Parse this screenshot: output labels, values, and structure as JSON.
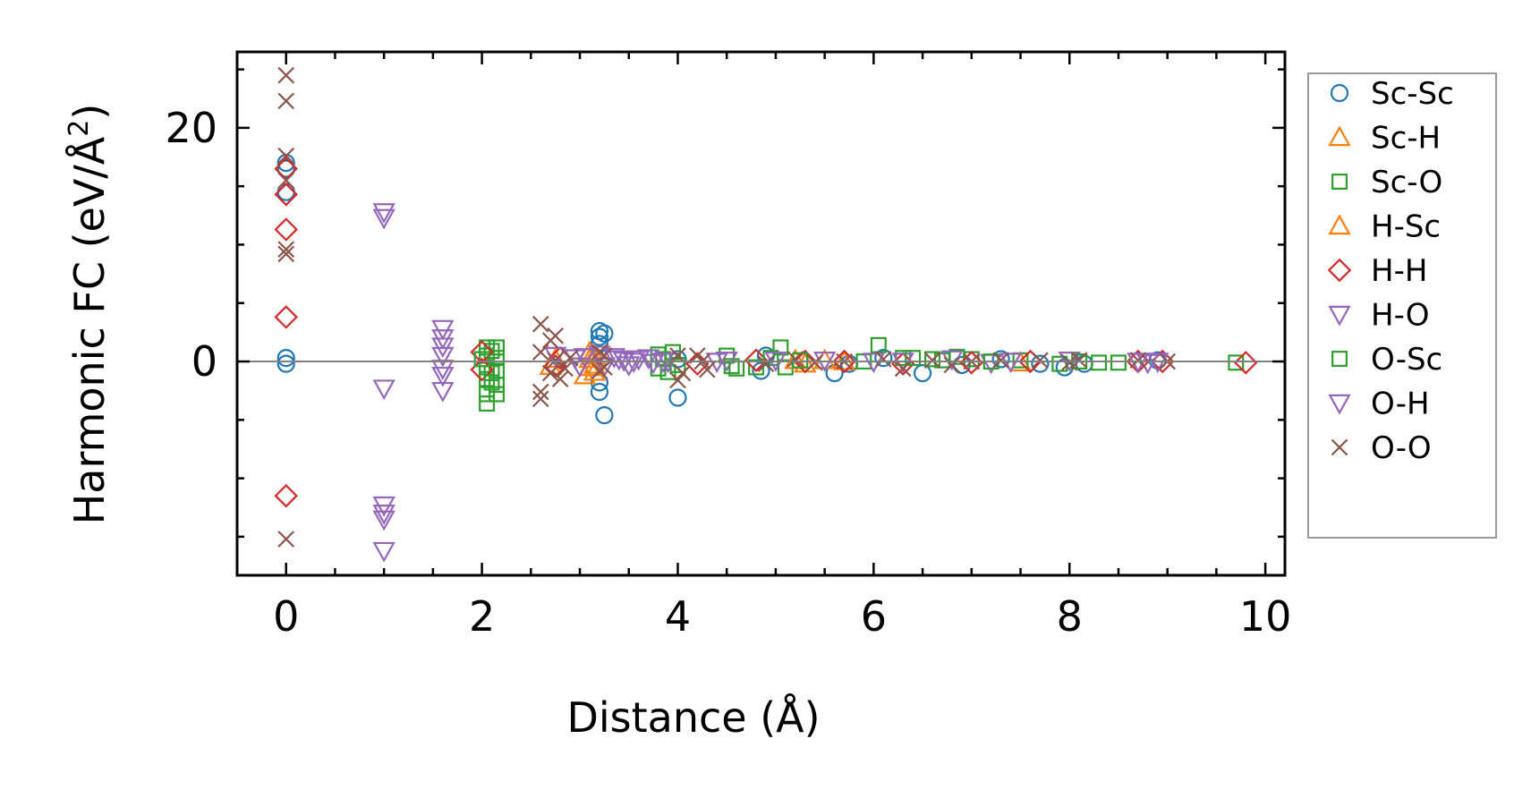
{
  "chart_data": {
    "type": "scatter",
    "xlabel": "Distance (Å)",
    "ylabel_main": "Harmonic FC (eV/Å",
    "ylabel_sup": "2",
    "ylabel_end": ")",
    "xlim": [
      -0.5,
      10.2
    ],
    "ylim": [
      -18.3,
      26.5
    ],
    "x_ticks": [
      0,
      2,
      4,
      6,
      8,
      10
    ],
    "x_tick_labels": [
      "0",
      "2",
      "4",
      "6",
      "8",
      "10"
    ],
    "y_ticks": [
      0,
      20
    ],
    "y_tick_labels": [
      "0",
      "20"
    ],
    "x_minor_step": 0.5,
    "y_minor_step": 5,
    "zero_line": true,
    "grid": false,
    "legend_position": "outside-right",
    "series": [
      {
        "name": "Sc-Sc",
        "marker": "circle",
        "color": "#1f77b4",
        "points": [
          [
            0,
            17
          ],
          [
            0,
            16.5
          ],
          [
            0,
            14.5
          ],
          [
            0,
            0.3
          ],
          [
            0,
            -0.2
          ],
          [
            3.2,
            2.6
          ],
          [
            3.25,
            2.4
          ],
          [
            3.2,
            2.1
          ],
          [
            3.2,
            1.5
          ],
          [
            3.2,
            -1.8
          ],
          [
            3.2,
            -2.6
          ],
          [
            3.25,
            -4.6
          ],
          [
            4.0,
            -3.1
          ],
          [
            4.0,
            0.2
          ],
          [
            4.85,
            -0.8
          ],
          [
            4.9,
            0.5
          ],
          [
            5.6,
            -1.0
          ],
          [
            5.75,
            -0.2
          ],
          [
            6.1,
            0.3
          ],
          [
            6.5,
            -1.0
          ],
          [
            6.9,
            -0.3
          ],
          [
            7.3,
            0.2
          ],
          [
            7.7,
            -0.2
          ],
          [
            7.95,
            -0.5
          ],
          [
            8.15,
            -0.2
          ],
          [
            8.9,
            0.1
          ]
        ]
      },
      {
        "name": "Sc-H",
        "marker": "triangle-up",
        "color": "#ff7f0e",
        "points": [
          [
            3.05,
            -1.2
          ],
          [
            3.1,
            -0.5
          ],
          [
            3.1,
            0.2
          ],
          [
            3.15,
            0.5
          ],
          [
            3.15,
            -0.9
          ],
          [
            5.3,
            -0.2
          ],
          [
            5.5,
            0.1
          ],
          [
            7.5,
            -0.1
          ]
        ]
      },
      {
        "name": "Sc-O",
        "marker": "square",
        "color": "#2ca02c",
        "points": [
          [
            2.05,
            1.2
          ],
          [
            2.05,
            0.5
          ],
          [
            2.05,
            -0.5
          ],
          [
            2.05,
            -1.5
          ],
          [
            2.05,
            -2.8
          ],
          [
            2.05,
            -3.6
          ],
          [
            2.1,
            0.9
          ],
          [
            2.1,
            -1.0
          ],
          [
            2.15,
            1.2
          ],
          [
            2.15,
            0.3
          ],
          [
            2.15,
            -0.8
          ],
          [
            2.15,
            -2.0
          ],
          [
            2.15,
            -2.8
          ],
          [
            3.8,
            0.6
          ],
          [
            3.8,
            -0.6
          ],
          [
            3.85,
            0.2
          ],
          [
            3.9,
            -0.9
          ],
          [
            3.95,
            0.8
          ],
          [
            4.0,
            -0.3
          ],
          [
            4.5,
            0.5
          ],
          [
            4.55,
            -0.4
          ],
          [
            4.8,
            -0.5
          ],
          [
            5.05,
            1.2
          ],
          [
            5.1,
            -0.5
          ],
          [
            6.05,
            1.4
          ],
          [
            6.3,
            0.3
          ],
          [
            6.7,
            0.1
          ],
          [
            6.85,
            0.4
          ],
          [
            7.0,
            0.2
          ],
          [
            7.5,
            0.1
          ],
          [
            8.3,
            -0.1
          ],
          [
            8.5,
            -0.1
          ],
          [
            9.7,
            -0.1
          ]
        ]
      },
      {
        "name": "H-Sc",
        "marker": "triangle-up",
        "color": "#ff7f0e",
        "points": [
          [
            2.7,
            -0.4
          ],
          [
            2.75,
            0.2
          ],
          [
            3.1,
            0.8
          ],
          [
            3.15,
            -0.3
          ],
          [
            5.2,
            0.1
          ],
          [
            5.7,
            0.0
          ]
        ]
      },
      {
        "name": "H-H",
        "marker": "diamond",
        "color": "#d62728",
        "points": [
          [
            0,
            16.5
          ],
          [
            0,
            14.3
          ],
          [
            0,
            11.3
          ],
          [
            0,
            3.8
          ],
          [
            0,
            -11.5
          ],
          [
            2.0,
            0.8
          ],
          [
            2.0,
            -0.7
          ],
          [
            2.75,
            -0.4
          ],
          [
            2.8,
            0.3
          ],
          [
            4.2,
            -0.2
          ],
          [
            4.8,
            0.1
          ],
          [
            5.3,
            0.0
          ],
          [
            5.7,
            0.0
          ],
          [
            6.3,
            -0.2
          ],
          [
            7.0,
            -0.1
          ],
          [
            7.6,
            0.0
          ],
          [
            8.7,
            0.0
          ],
          [
            8.95,
            0.0
          ],
          [
            9.8,
            -0.1
          ]
        ]
      },
      {
        "name": "H-O",
        "marker": "triangle-down",
        "color": "#9467bd",
        "points": [
          [
            1.0,
            12.8
          ],
          [
            1.0,
            12.3
          ],
          [
            1.0,
            -2.3
          ],
          [
            1.0,
            -12.3
          ],
          [
            1.0,
            -13.0
          ],
          [
            1.0,
            -13.5
          ],
          [
            1.0,
            -16.2
          ],
          [
            1.6,
            2.8
          ],
          [
            1.6,
            2.0
          ],
          [
            1.6,
            1.3
          ],
          [
            1.6,
            0.5
          ],
          [
            1.6,
            -0.6
          ],
          [
            1.6,
            -1.2
          ],
          [
            1.6,
            -2.5
          ],
          [
            2.75,
            0.5
          ],
          [
            2.95,
            0.3
          ],
          [
            3.0,
            -0.4
          ],
          [
            3.35,
            0.4
          ],
          [
            3.45,
            0.1
          ],
          [
            3.5,
            -0.3
          ],
          [
            3.6,
            0.2
          ],
          [
            3.7,
            0.3
          ],
          [
            3.75,
            -0.1
          ],
          [
            3.85,
            0.0
          ],
          [
            4.5,
            0.1
          ],
          [
            5.5,
            0.1
          ],
          [
            6.3,
            0.0
          ],
          [
            6.8,
            0.2
          ],
          [
            7.2,
            -0.1
          ],
          [
            8.0,
            0.1
          ],
          [
            8.7,
            0.0
          ],
          [
            8.8,
            -0.1
          ]
        ]
      },
      {
        "name": "O-Sc",
        "marker": "square",
        "color": "#2ca02c",
        "points": [
          [
            2.0,
            0.2
          ],
          [
            2.1,
            -1.8
          ],
          [
            4.6,
            -0.6
          ],
          [
            4.95,
            0.3
          ],
          [
            5.25,
            0.1
          ],
          [
            5.9,
            0.0
          ],
          [
            6.4,
            0.3
          ],
          [
            6.6,
            0.2
          ],
          [
            7.2,
            0.0
          ],
          [
            7.9,
            -0.2
          ],
          [
            8.1,
            0.0
          ]
        ]
      },
      {
        "name": "O-H",
        "marker": "triangle-down",
        "color": "#9467bd",
        "points": [
          [
            3.05,
            0.4
          ],
          [
            3.2,
            0.6
          ],
          [
            3.25,
            -0.4
          ],
          [
            3.4,
            0.2
          ],
          [
            3.55,
            0.0
          ],
          [
            3.9,
            0.0
          ],
          [
            4.4,
            0.0
          ],
          [
            5.0,
            0.1
          ],
          [
            6.0,
            0.0
          ],
          [
            7.4,
            0.0
          ],
          [
            8.9,
            0.0
          ]
        ]
      },
      {
        "name": "O-O",
        "marker": "x",
        "color": "#8c564b",
        "points": [
          [
            0,
            24.5
          ],
          [
            0,
            22.3
          ],
          [
            0,
            17.6
          ],
          [
            0,
            15.5
          ],
          [
            0,
            9.6
          ],
          [
            0,
            9.2
          ],
          [
            0,
            -15.2
          ],
          [
            2.6,
            3.2
          ],
          [
            2.6,
            0.8
          ],
          [
            2.6,
            -2.6
          ],
          [
            2.6,
            -3.2
          ],
          [
            2.7,
            1.8
          ],
          [
            2.7,
            -1.0
          ],
          [
            2.75,
            2.2
          ],
          [
            2.75,
            0.1
          ],
          [
            2.8,
            -1.5
          ],
          [
            2.85,
            -0.6
          ],
          [
            2.9,
            0.3
          ],
          [
            3.2,
            0.8
          ],
          [
            3.2,
            -0.8
          ],
          [
            3.25,
            0.5
          ],
          [
            3.25,
            -0.5
          ],
          [
            4.0,
            0.5
          ],
          [
            4.0,
            -1.6
          ],
          [
            4.05,
            -1.0
          ],
          [
            4.2,
            0.5
          ],
          [
            4.25,
            0.0
          ],
          [
            4.3,
            -0.7
          ],
          [
            4.9,
            -0.2
          ],
          [
            5.2,
            0.2
          ],
          [
            5.4,
            -0.1
          ],
          [
            5.7,
            0.0
          ],
          [
            6.1,
            0.2
          ],
          [
            6.3,
            -0.6
          ],
          [
            6.6,
            0.1
          ],
          [
            6.8,
            -0.3
          ],
          [
            7.0,
            0.0
          ],
          [
            7.3,
            0.1
          ],
          [
            7.7,
            0.1
          ],
          [
            8.0,
            -0.1
          ],
          [
            8.1,
            0.1
          ],
          [
            8.7,
            0.1
          ],
          [
            9.0,
            0.0
          ]
        ]
      }
    ]
  }
}
